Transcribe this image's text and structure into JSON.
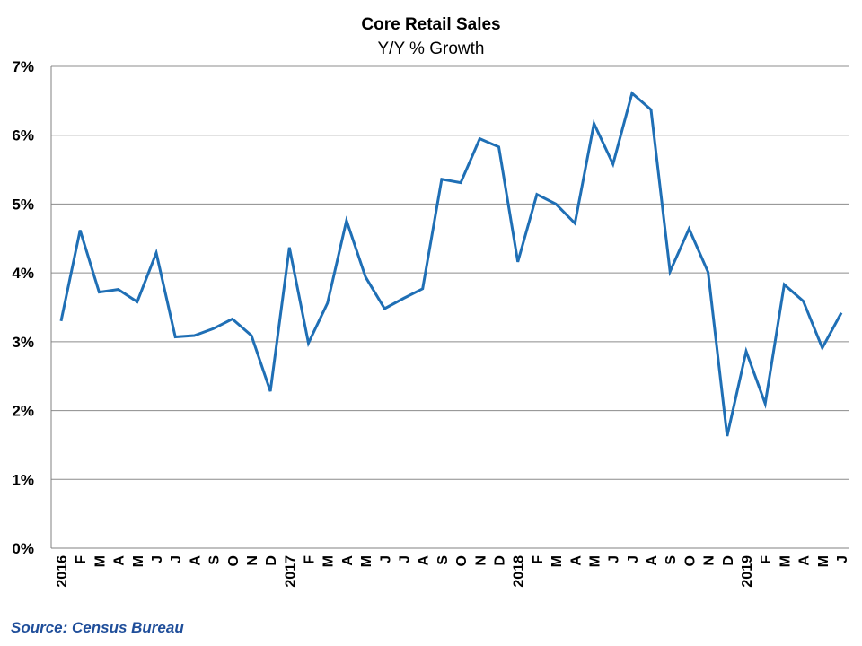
{
  "chart_data": {
    "type": "line",
    "title": "Core Retail Sales",
    "subtitle": "Y/Y % Growth",
    "xlabel": "",
    "ylabel": "",
    "ylim": [
      0,
      7
    ],
    "y_ticks": [
      "0%",
      "1%",
      "2%",
      "3%",
      "4%",
      "5%",
      "6%",
      "7%"
    ],
    "grid": "horizontal",
    "x": [
      "2016",
      "F",
      "M",
      "A",
      "M",
      "J",
      "J",
      "A",
      "S",
      "O",
      "N",
      "D",
      "2017",
      "F",
      "M",
      "A",
      "M",
      "J",
      "J",
      "A",
      "S",
      "O",
      "N",
      "D",
      "2018",
      "F",
      "M",
      "A",
      "M",
      "J",
      "J",
      "A",
      "S",
      "O",
      "N",
      "D",
      "2019",
      "F",
      "M",
      "A",
      "M",
      "J"
    ],
    "series": [
      {
        "color": "#1f6fb5",
        "values": [
          3.3,
          4.62,
          3.72,
          3.76,
          3.58,
          4.29,
          3.07,
          3.09,
          3.19,
          3.33,
          3.09,
          2.28,
          4.37,
          2.98,
          3.56,
          4.76,
          3.94,
          3.48,
          3.63,
          3.77,
          5.36,
          5.31,
          5.95,
          5.83,
          4.16,
          5.14,
          5.0,
          4.72,
          6.17,
          5.58,
          6.61,
          6.37,
          4.02,
          4.64,
          4.01,
          1.63,
          2.86,
          2.1,
          3.83,
          3.59,
          2.91,
          3.42
        ]
      }
    ]
  },
  "source": "Source: Census Bureau"
}
